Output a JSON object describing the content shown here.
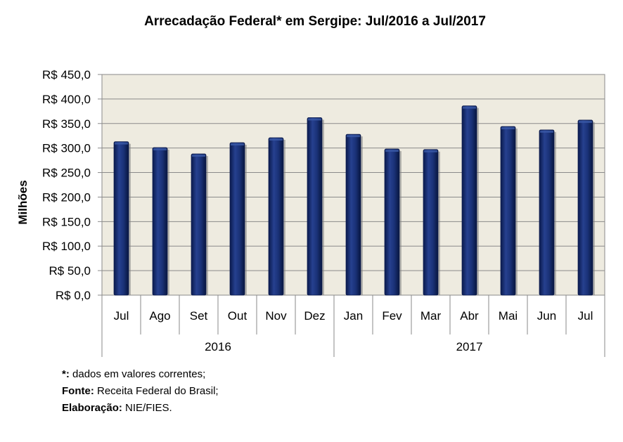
{
  "chart_data": {
    "type": "bar",
    "title": "Arrecadação Federal* em Sergipe: Jul/2016 a Jul/2017",
    "ylabel": "Milhões",
    "xlabel": "",
    "ylim": [
      0,
      450
    ],
    "yticks": [
      "R$ 0,0",
      "R$ 50,0",
      "R$ 100,0",
      "R$ 150,0",
      "R$ 200,0",
      "R$ 250,0",
      "R$ 300,0",
      "R$ 350,0",
      "R$ 400,0",
      "R$ 450,0"
    ],
    "grid": true,
    "categories": [
      "Jul",
      "Ago",
      "Set",
      "Out",
      "Nov",
      "Dez",
      "Jan",
      "Fev",
      "Mar",
      "Abr",
      "Mai",
      "Jun",
      "Jul"
    ],
    "years": [
      {
        "label": "2016",
        "count": 6
      },
      {
        "label": "2017",
        "count": 7
      }
    ],
    "values": [
      313,
      301,
      288,
      311,
      321,
      362,
      328,
      298,
      297,
      386,
      344,
      337,
      357
    ],
    "colors": {
      "bar": "#0f2466",
      "bar_highlight": "#3b5aa8",
      "plot_bg": "#eeebe0",
      "grid": "#8a8a8a"
    }
  },
  "notes": [
    {
      "label": "*:",
      "text": "dados em valores correntes;"
    },
    {
      "label": "Fonte:",
      "text": "Receita Federal do Brasil;"
    },
    {
      "label": "Elaboração:",
      "text": "NIE/FIES."
    }
  ]
}
